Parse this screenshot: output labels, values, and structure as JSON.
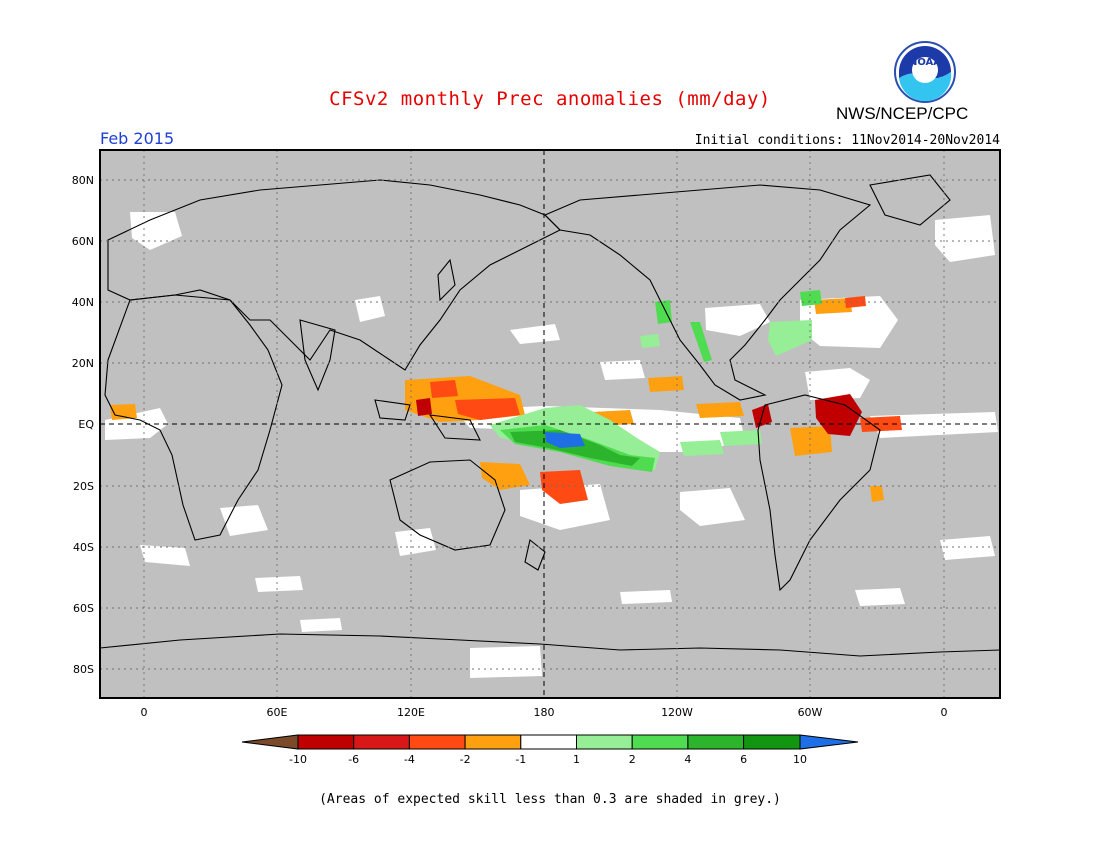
{
  "header": {
    "title": "CFSv2 monthly Prec anomalies (mm/day)",
    "agency": "NWS/NCEP/CPC",
    "logo_text": "NOAA",
    "month": "Feb 2015",
    "initial_conditions": "Initial conditions: 11Nov2014-20Nov2014"
  },
  "map": {
    "background_color": "#c0c0c0",
    "lat_labels": [
      "80N",
      "60N",
      "40N",
      "20N",
      "EQ",
      "20S",
      "40S",
      "60S",
      "80S"
    ],
    "lon_labels": [
      "0",
      "60E",
      "120E",
      "180",
      "120W",
      "60W",
      "0"
    ],
    "gridlines": "dotted",
    "center_meridian": "180"
  },
  "colorbar": {
    "labels": [
      "-10",
      "-6",
      "-4",
      "-2",
      "-1",
      "1",
      "2",
      "4",
      "6",
      "10"
    ],
    "colors": [
      "#7a4a2a",
      "#c00000",
      "#d81818",
      "#ff4a14",
      "#ffa010",
      "#ffffff",
      "#96ee96",
      "#50dc50",
      "#2cb42c",
      "#129612",
      "#1e6ee6"
    ]
  },
  "footnote": "(Areas of expected skill less than 0.3 are shaded in grey.)"
}
